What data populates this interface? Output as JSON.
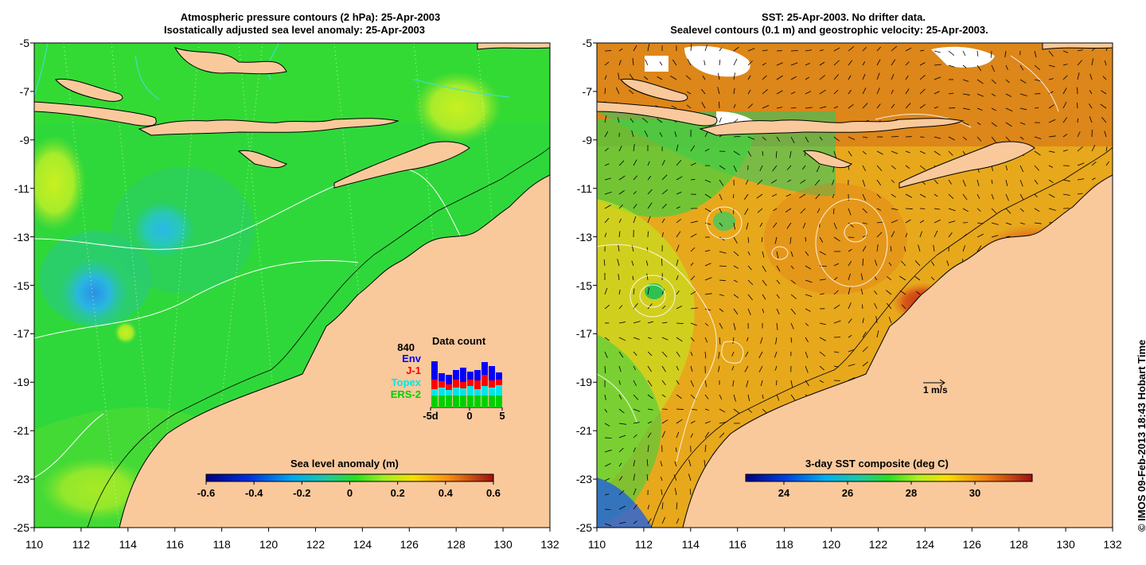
{
  "left_panel": {
    "title_line1": "Atmospheric pressure contours (2 hPa): 25-Apr-2003",
    "title_line2": "Isostatically adjusted sea level anomaly: 25-Apr-2003",
    "lat_ticks": [
      "-5",
      "-7",
      "-9",
      "-11",
      "-13",
      "-15",
      "-17",
      "-19",
      "-21",
      "-23",
      "-25"
    ],
    "lon_ticks": [
      "110",
      "112",
      "114",
      "116",
      "118",
      "120",
      "122",
      "124",
      "126",
      "128",
      "130",
      "132"
    ],
    "colorbar": {
      "title": "Sea level anomaly (m)",
      "ticks": [
        "-0.6",
        "-0.4",
        "-0.2",
        "0",
        "0.2",
        "0.4",
        "0.6"
      ],
      "range": [
        -0.6,
        0.6
      ]
    },
    "data_count": {
      "title": "Data count",
      "total": "840",
      "missions": [
        {
          "name": "Env",
          "color": "#0000ff"
        },
        {
          "name": "J-1",
          "color": "#ff0000"
        },
        {
          "name": "Topex",
          "color": "#00e5e5"
        },
        {
          "name": "ERS-2",
          "color": "#00d000"
        }
      ],
      "axis_ticks": [
        "-5d",
        "0",
        "5"
      ]
    }
  },
  "right_panel": {
    "title_line1": "SST: 25-Apr-2003. No drifter data.",
    "title_line2": "Sealevel contours (0.1 m) and geostrophic velocity: 25-Apr-2003.",
    "lat_ticks": [
      "-5",
      "-7",
      "-9",
      "-11",
      "-13",
      "-15",
      "-17",
      "-19",
      "-21",
      "-23",
      "-25"
    ],
    "lon_ticks": [
      "110",
      "112",
      "114",
      "116",
      "118",
      "120",
      "122",
      "124",
      "126",
      "128",
      "130",
      "132"
    ],
    "colorbar": {
      "title": "3-day SST composite (deg C)",
      "ticks": [
        "24",
        "26",
        "28",
        "30"
      ],
      "range": [
        22.8,
        31.8
      ]
    },
    "velocity_scale_label": "1 m/s"
  },
  "credit": "© IMOS 09-Feb-2013 18:43 Hobart Time",
  "colors": {
    "land": "#f9c99c",
    "ocean_green": "#2ee02e",
    "ssl_low": "#29a9e8",
    "sst_orange": "#f0a020",
    "sst_hot": "#c03010"
  }
}
